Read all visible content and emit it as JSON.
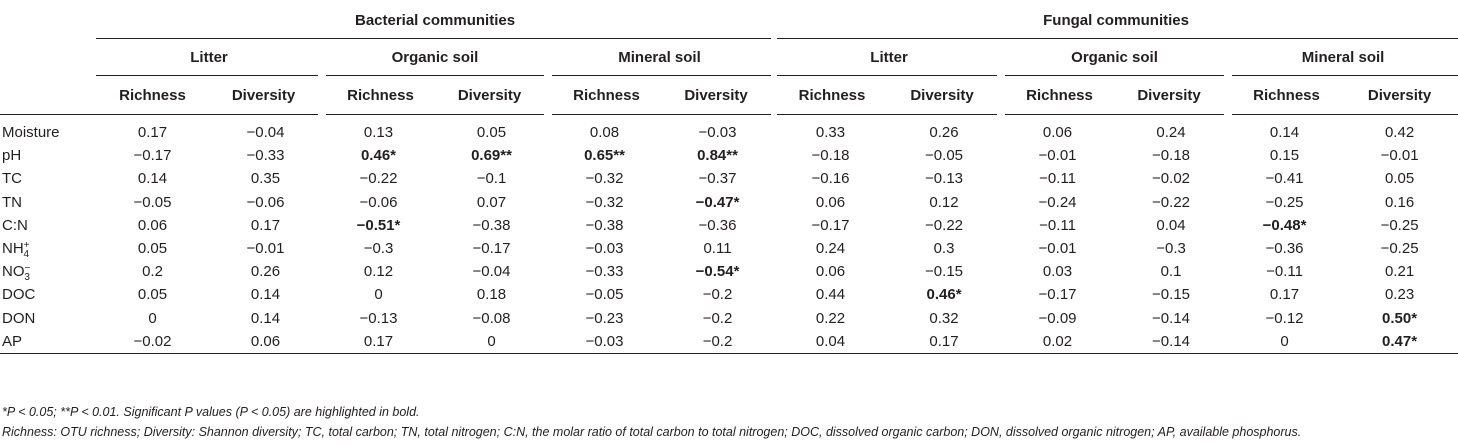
{
  "groups": {
    "bacterial": "Bacterial communities",
    "fungal": "Fungal communities"
  },
  "habitats": [
    "Litter",
    "Organic soil",
    "Mineral soil",
    "Litter",
    "Organic soil",
    "Mineral soil"
  ],
  "metrics": [
    "Richness",
    "Diversity",
    "Richness",
    "Diversity",
    "Richness",
    "Diversity",
    "Richness",
    "Diversity",
    "Richness",
    "Diversity",
    "Richness",
    "Diversity"
  ],
  "ions": {
    "nh4": {
      "base": "NH",
      "sup": "+",
      "sub": "4"
    },
    "no3": {
      "base": "NO",
      "sup": "−",
      "sub": "3"
    }
  },
  "rows": [
    {
      "label": "Moisture",
      "cells": [
        "0.17",
        "−0.04",
        "0.13",
        "0.05",
        "0.08",
        "−0.03",
        "0.33",
        "0.26",
        "0.06",
        "0.24",
        "0.14",
        "0.42"
      ],
      "bold": []
    },
    {
      "label": "pH",
      "cells": [
        "−0.17",
        "−0.33",
        "0.46*",
        "0.69**",
        "0.65**",
        "0.84**",
        "−0.18",
        "−0.05",
        "−0.01",
        "−0.18",
        "0.15",
        "−0.01"
      ],
      "bold": [
        2,
        3,
        4,
        5
      ]
    },
    {
      "label": "TC",
      "cells": [
        "0.14",
        "0.35",
        "−0.22",
        "−0.1",
        "−0.32",
        "−0.37",
        "−0.16",
        "−0.13",
        "−0.11",
        "−0.02",
        "−0.41",
        "0.05"
      ],
      "bold": []
    },
    {
      "label": "TN",
      "cells": [
        "−0.05",
        "−0.06",
        "−0.06",
        "0.07",
        "−0.32",
        "−0.47*",
        "0.06",
        "0.12",
        "−0.24",
        "−0.22",
        "−0.25",
        "0.16"
      ],
      "bold": [
        5
      ]
    },
    {
      "label": "C:N",
      "cells": [
        "0.06",
        "0.17",
        "−0.51*",
        "−0.38",
        "−0.38",
        "−0.36",
        "−0.17",
        "−0.22",
        "−0.11",
        "0.04",
        "−0.48*",
        "−0.25"
      ],
      "bold": [
        2,
        10
      ]
    },
    {
      "label": "NH4+",
      "ion": "nh4",
      "cells": [
        "0.05",
        "−0.01",
        "−0.3",
        "−0.17",
        "−0.03",
        "0.11",
        "0.24",
        "0.3",
        "−0.01",
        "−0.3",
        "−0.36",
        "−0.25"
      ],
      "bold": []
    },
    {
      "label": "NO3−",
      "ion": "no3",
      "cells": [
        "0.2",
        "0.26",
        "0.12",
        "−0.04",
        "−0.33",
        "−0.54*",
        "0.06",
        "−0.15",
        "0.03",
        "0.1",
        "−0.11",
        "0.21"
      ],
      "bold": [
        5
      ]
    },
    {
      "label": "DOC",
      "cells": [
        "0.05",
        "0.14",
        "0",
        "0.18",
        "−0.05",
        "−0.2",
        "0.44",
        "0.46*",
        "−0.17",
        "−0.15",
        "0.17",
        "0.23"
      ],
      "bold": [
        7
      ]
    },
    {
      "label": "DON",
      "cells": [
        "0",
        "0.14",
        "−0.13",
        "−0.08",
        "−0.23",
        "−0.2",
        "0.22",
        "0.32",
        "−0.09",
        "−0.14",
        "−0.12",
        "0.50*"
      ],
      "bold": [
        11
      ]
    },
    {
      "label": "AP",
      "cells": [
        "−0.02",
        "0.06",
        "0.17",
        "0",
        "−0.03",
        "−0.2",
        "0.04",
        "0.17",
        "0.02",
        "−0.14",
        "0",
        "0.47*"
      ],
      "bold": [
        11
      ]
    }
  ],
  "footnotes": [
    "*P < 0.05; **P < 0.01. Significant P values (P < 0.05) are highlighted in bold.",
    "Richness: OTU richness; Diversity: Shannon diversity; TC, total carbon; TN, total nitrogen; C:N, the molar ratio of total carbon to total nitrogen; DOC, dissolved organic carbon; DON, dissolved organic nitrogen; AP, available phosphorus."
  ]
}
